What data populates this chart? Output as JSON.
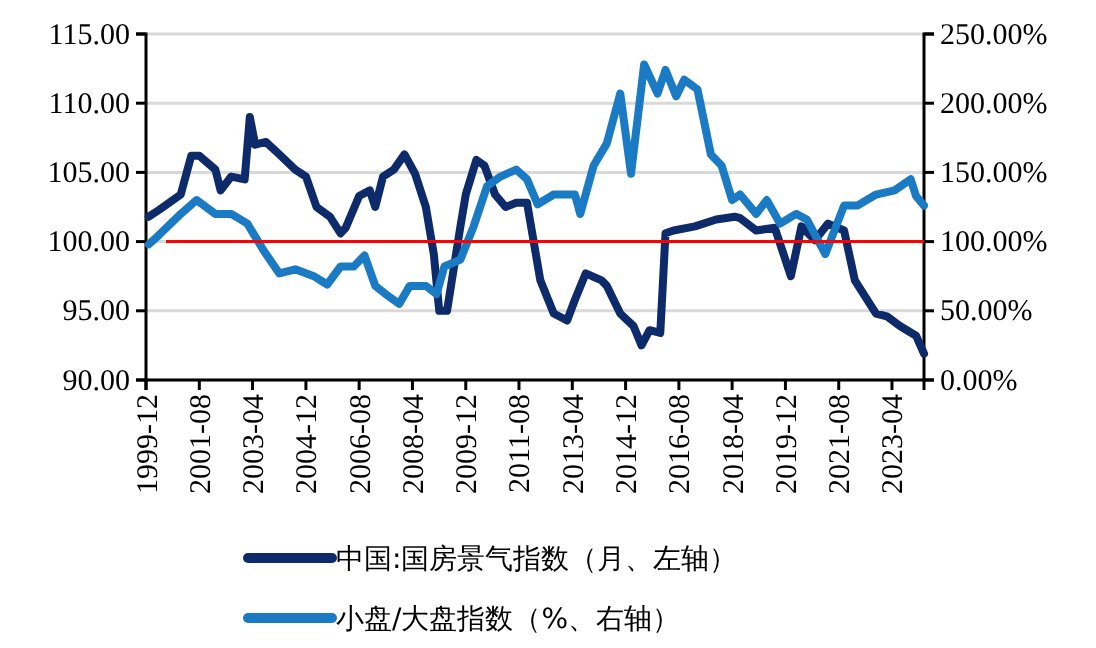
{
  "chart_data": {
    "type": "line",
    "xlim": [
      "1999-12",
      "2024-04"
    ],
    "xticks": [
      "1999-12",
      "2001-08",
      "2003-04",
      "2004-12",
      "2006-08",
      "2008-04",
      "2009-12",
      "2011-08",
      "2013-04",
      "2014-12",
      "2016-08",
      "2018-04",
      "2019-12",
      "2021-08",
      "2023-04"
    ],
    "ylim": [
      90,
      115
    ],
    "yticks": [
      {
        "value": 90,
        "label": "90.00"
      },
      {
        "value": 95,
        "label": "95.00"
      },
      {
        "value": 100,
        "label": "100.00"
      },
      {
        "value": 105,
        "label": "105.00"
      },
      {
        "value": 110,
        "label": "110.00"
      },
      {
        "value": 115,
        "label": "115.00"
      }
    ],
    "y2lim": [
      0,
      250
    ],
    "y2ticks": [
      {
        "value": 0,
        "label": "0.00%"
      },
      {
        "value": 50,
        "label": "50.00%"
      },
      {
        "value": 100,
        "label": "100.00%"
      },
      {
        "value": 150,
        "label": "150.00%"
      },
      {
        "value": 200,
        "label": "200.00%"
      },
      {
        "value": 250,
        "label": "250.00%"
      }
    ],
    "grid": "y",
    "legend": "bottom",
    "line_style": "solid",
    "ref_lines": [
      {
        "axis": "y",
        "value": 100,
        "color": "#ff0000"
      }
    ],
    "series": [
      {
        "name": "中国:国房景气指数（月、左轴）",
        "color": "#0d2a6b",
        "x": [
          "2000-01",
          "2000-05",
          "2001-01",
          "2001-05",
          "2001-08",
          "2002-02",
          "2002-04",
          "2002-08",
          "2003-01",
          "2003-03",
          "2003-05",
          "2003-09",
          "2004-02",
          "2004-08",
          "2004-12",
          "2005-04",
          "2005-09",
          "2006-01",
          "2006-03",
          "2006-08",
          "2006-12",
          "2007-02",
          "2007-05",
          "2007-09",
          "2008-01",
          "2008-05",
          "2008-09",
          "2008-12",
          "2009-02",
          "2009-05",
          "2009-10",
          "2009-12",
          "2010-04",
          "2010-07",
          "2010-11",
          "2011-03",
          "2011-07",
          "2011-11",
          "2012-04",
          "2012-09",
          "2013-02",
          "2013-05",
          "2013-09",
          "2014-03",
          "2014-05",
          "2014-10",
          "2015-03",
          "2015-06",
          "2015-09",
          "2016-01",
          "2016-03",
          "2016-06",
          "2017-02",
          "2017-10",
          "2018-05",
          "2018-07",
          "2019-01",
          "2019-08",
          "2020-02",
          "2020-06",
          "2020-11",
          "2021-04",
          "2021-10",
          "2022-02",
          "2022-10",
          "2023-02",
          "2023-07",
          "2024-01",
          "2024-04"
        ],
        "values": [
          101.8,
          102.3,
          103.4,
          106.2,
          106.2,
          105.2,
          103.7,
          104.7,
          104.5,
          109.0,
          107.0,
          107.2,
          106.3,
          105.2,
          104.7,
          102.5,
          101.8,
          100.6,
          101.0,
          103.3,
          103.7,
          102.5,
          104.7,
          105.2,
          106.3,
          104.9,
          102.5,
          99.1,
          95.0,
          95.0,
          101.1,
          103.4,
          105.9,
          105.5,
          103.4,
          102.5,
          102.8,
          102.8,
          97.2,
          94.8,
          94.3,
          95.8,
          97.7,
          97.2,
          96.8,
          94.8,
          93.9,
          92.5,
          93.6,
          93.4,
          100.6,
          100.8,
          101.1,
          101.6,
          101.8,
          101.7,
          100.8,
          101.0,
          97.5,
          101.1,
          100.1,
          101.3,
          100.8,
          97.2,
          94.8,
          94.6,
          93.9,
          93.2,
          91.9
        ]
      },
      {
        "name": "小盘/大盘指数（%、右轴）",
        "color": "#1a7bc4",
        "axis": "y2",
        "x": [
          "2000-01",
          "2000-05",
          "2001-01",
          "2001-07",
          "2002-02",
          "2002-08",
          "2003-02",
          "2003-08",
          "2004-02",
          "2004-08",
          "2005-03",
          "2005-08",
          "2006-01",
          "2006-06",
          "2006-10",
          "2007-02",
          "2007-06",
          "2007-11",
          "2008-03",
          "2008-09",
          "2009-01",
          "2009-04",
          "2009-10",
          "2010-03",
          "2010-08",
          "2011-01",
          "2011-07",
          "2011-11",
          "2012-03",
          "2012-09",
          "2013-05",
          "2013-07",
          "2013-12",
          "2014-05",
          "2014-10",
          "2015-02",
          "2015-07",
          "2015-12",
          "2016-03",
          "2016-07",
          "2016-10",
          "2017-03",
          "2017-08",
          "2017-12",
          "2018-04",
          "2018-07",
          "2019-01",
          "2019-05",
          "2019-10",
          "2020-04",
          "2020-08",
          "2021-03",
          "2021-07",
          "2021-10",
          "2022-03",
          "2022-10",
          "2023-05",
          "2023-11",
          "2024-01",
          "2024-04"
        ],
        "values": [
          98,
          105,
          120,
          130,
          120,
          120,
          113,
          94,
          77,
          80,
          75,
          69,
          82,
          82,
          90,
          68,
          62,
          55,
          68,
          68,
          62,
          82,
          87,
          111,
          140,
          147,
          152,
          145,
          127,
          134,
          134,
          120,
          155,
          171,
          207,
          149,
          228,
          207,
          224,
          205,
          217,
          210,
          163,
          155,
          130,
          134,
          120,
          130,
          113,
          120,
          116,
          91,
          111,
          126,
          126,
          134,
          137,
          145,
          133,
          126
        ]
      }
    ]
  }
}
